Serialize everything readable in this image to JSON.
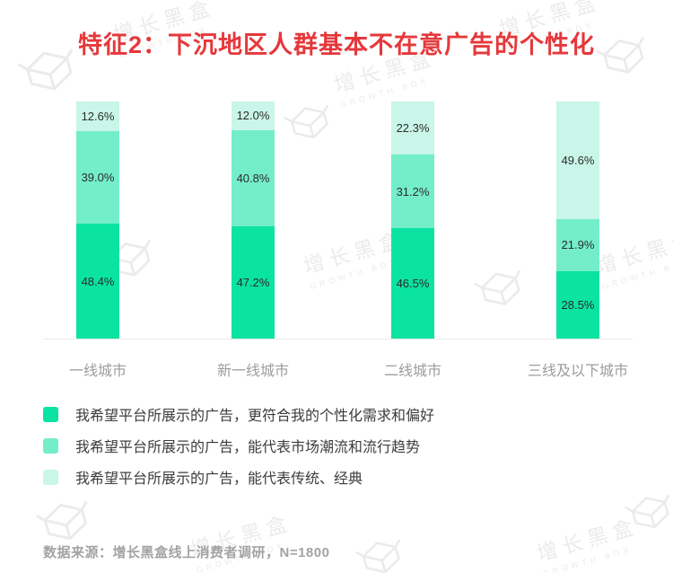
{
  "title": "特征2：下沉地区人群基本不在意广告的个性化",
  "title_color": "#E5383B",
  "watermark": {
    "cn": "增长黑盒",
    "en": "GROWTH BOX"
  },
  "footer": {
    "text": "数据来源：增长黑盒线上消费者调研，N=1800"
  },
  "chart_data": {
    "type": "bar",
    "stacked": true,
    "unit": "%",
    "title": "特征2：下沉地区人群基本不在意广告的个性化",
    "categories": [
      "一线城市",
      "新一线城市",
      "二线城市",
      "三线及以下城市"
    ],
    "series": [
      {
        "name": "我希望平台所展示的广告，更符合我的个性化需求和偏好",
        "color": "#0BE3A3",
        "values": [
          48.4,
          47.2,
          46.5,
          28.5
        ]
      },
      {
        "name": "我希望平台所展示的广告，能代表市场潮流和流行趋势",
        "color": "#74EEC9",
        "values": [
          39.0,
          40.8,
          31.2,
          21.9
        ]
      },
      {
        "name": "我希望平台所展示的广告，能代表传统、经典",
        "color": "#C9F6E8",
        "values": [
          12.6,
          12.0,
          22.3,
          49.6
        ]
      }
    ],
    "ylim": [
      0,
      100
    ],
    "xlabel": "",
    "ylabel": "",
    "grid": false,
    "legend_position": "bottom-left"
  }
}
